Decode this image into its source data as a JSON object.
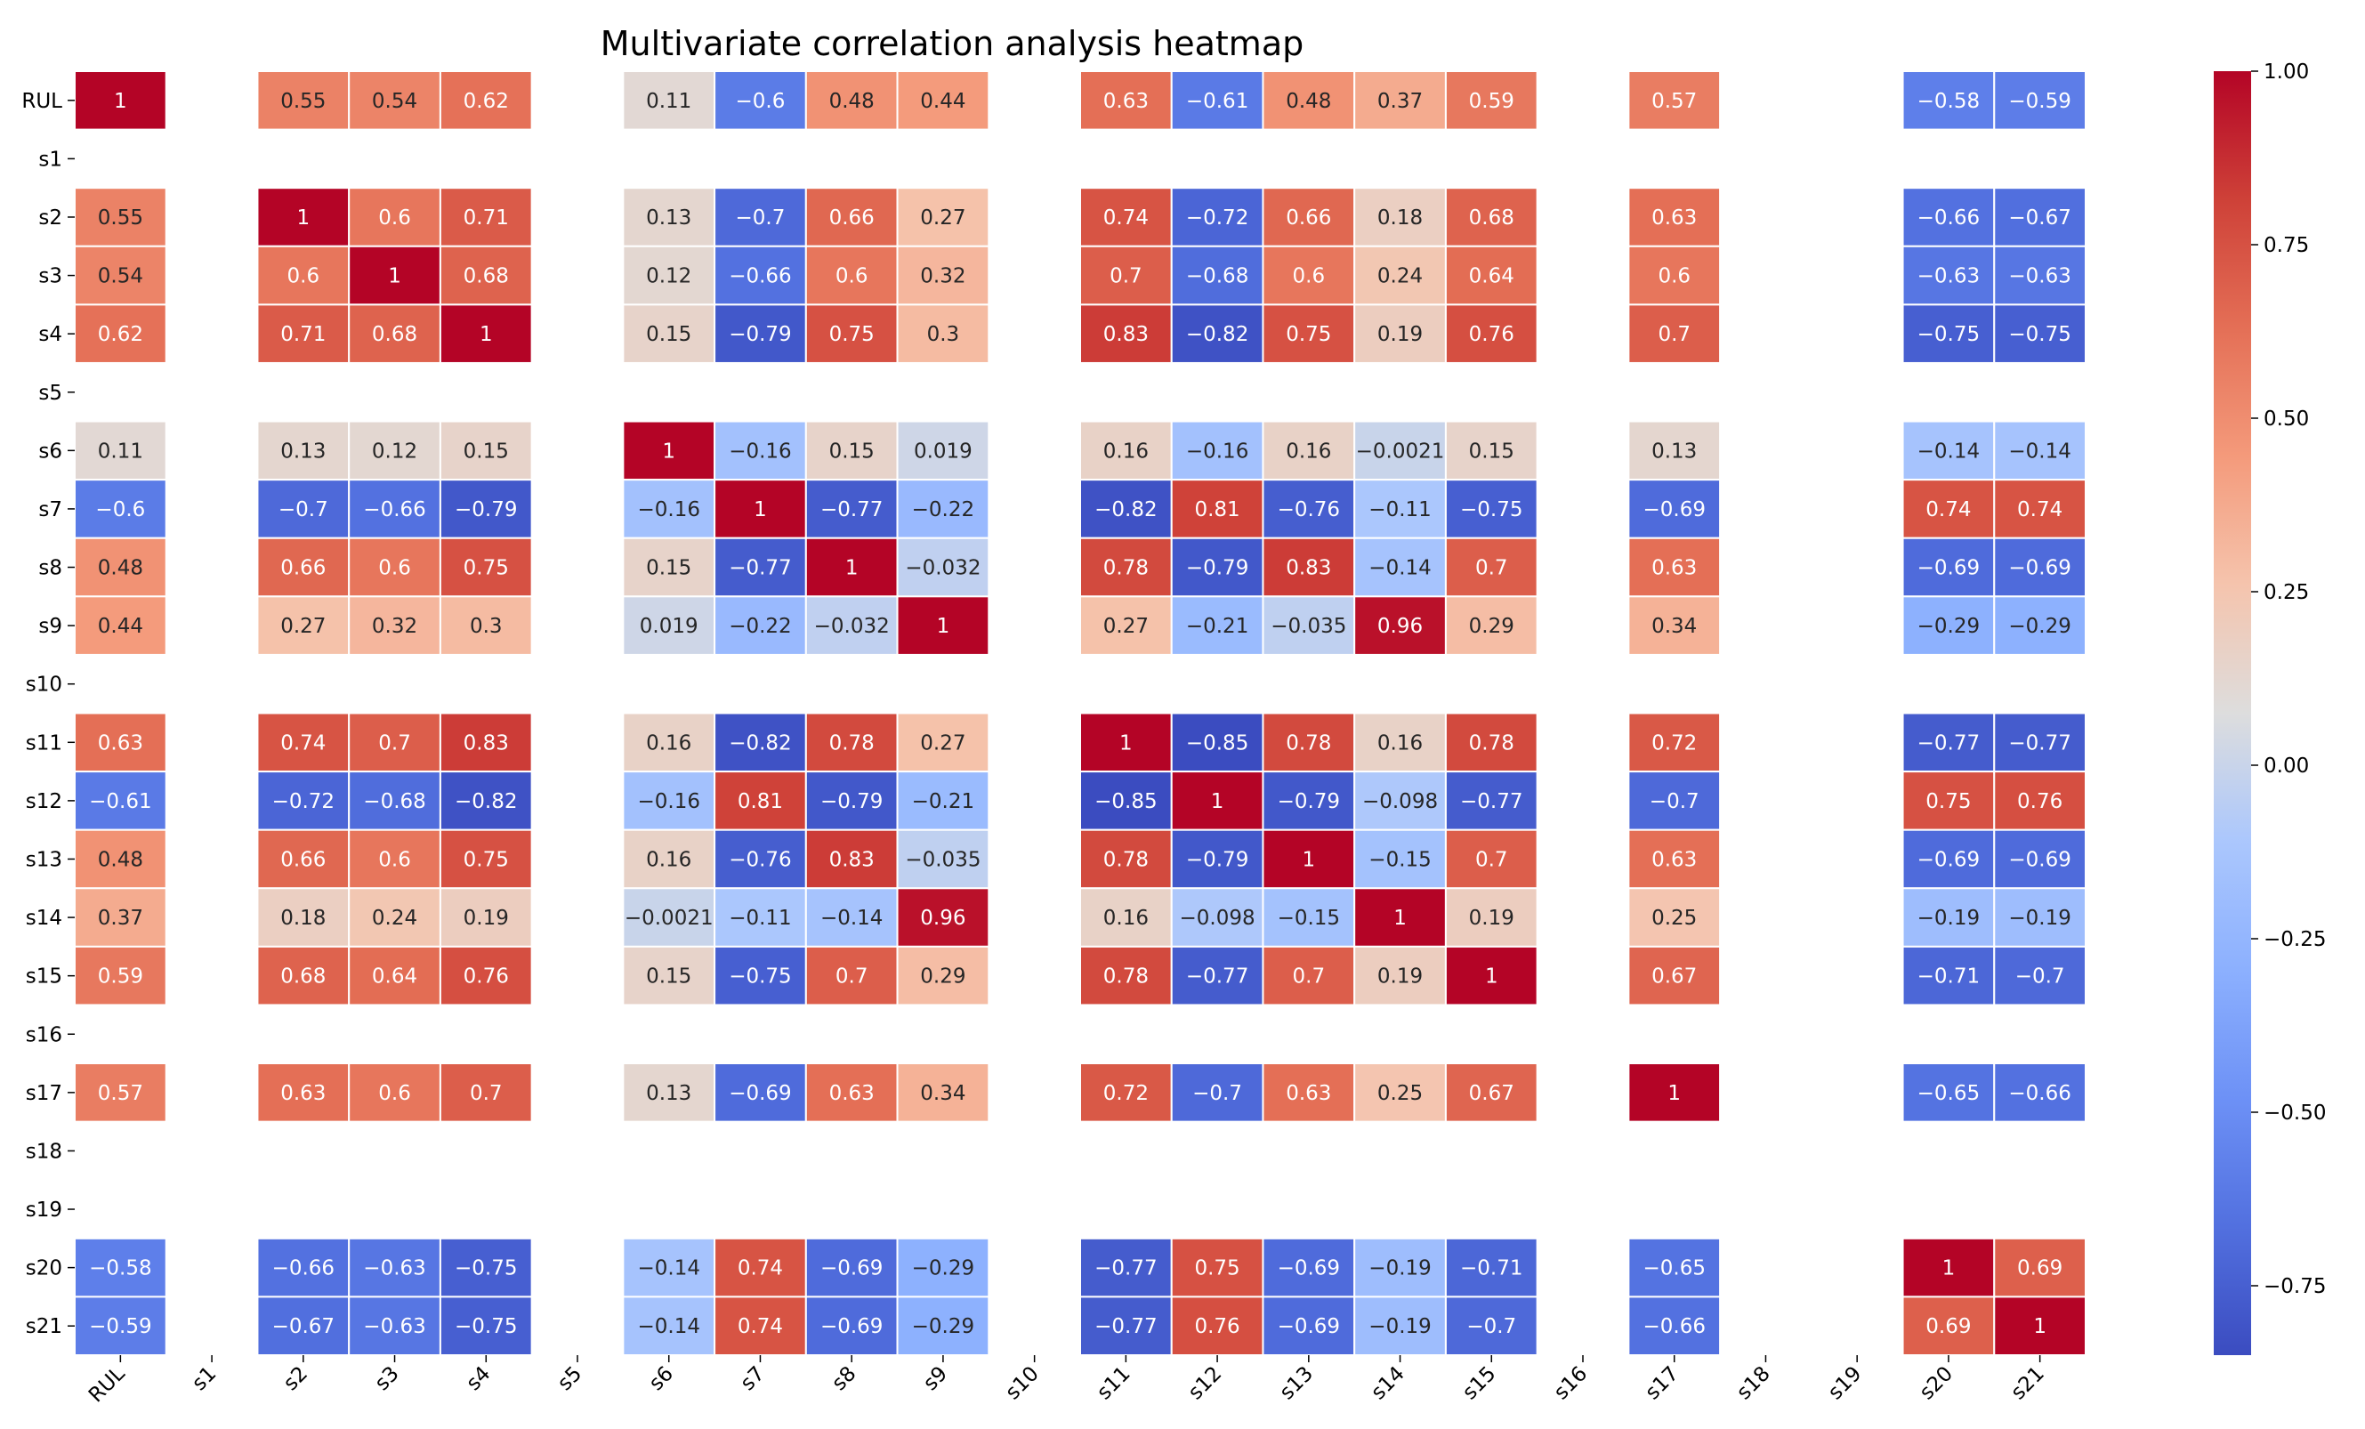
{
  "chart_data": {
    "type": "heatmap",
    "title": "Multivariate correlation analysis heatmap",
    "labels": [
      "RUL",
      "s1",
      "s2",
      "s3",
      "s4",
      "s5",
      "s6",
      "s7",
      "s8",
      "s9",
      "s10",
      "s11",
      "s12",
      "s13",
      "s14",
      "s15",
      "s16",
      "s17",
      "s18",
      "s19",
      "s20",
      "s21"
    ],
    "colormap": "coolwarm",
    "vmin": -0.85,
    "vmax": 1.0,
    "colorbar_ticks": [
      "1.00",
      "0.75",
      "0.50",
      "0.25",
      "0.00",
      "−0.25",
      "−0.50",
      "−0.75"
    ],
    "colorbar_tick_values": [
      1.0,
      0.75,
      0.5,
      0.25,
      0.0,
      -0.25,
      -0.5,
      -0.75
    ],
    "values": [
      [
        1,
        null,
        0.55,
        0.54,
        0.62,
        null,
        0.11,
        -0.6,
        0.48,
        0.44,
        null,
        0.63,
        -0.61,
        0.48,
        0.37,
        0.59,
        null,
        0.57,
        null,
        null,
        -0.58,
        -0.59
      ],
      [
        null,
        null,
        null,
        null,
        null,
        null,
        null,
        null,
        null,
        null,
        null,
        null,
        null,
        null,
        null,
        null,
        null,
        null,
        null,
        null,
        null,
        null
      ],
      [
        0.55,
        null,
        1,
        0.6,
        0.71,
        null,
        0.13,
        -0.7,
        0.66,
        0.27,
        null,
        0.74,
        -0.72,
        0.66,
        0.18,
        0.68,
        null,
        0.63,
        null,
        null,
        -0.66,
        -0.67
      ],
      [
        0.54,
        null,
        0.6,
        1,
        0.68,
        null,
        0.12,
        -0.66,
        0.6,
        0.32,
        null,
        0.7,
        -0.68,
        0.6,
        0.24,
        0.64,
        null,
        0.6,
        null,
        null,
        -0.63,
        -0.63
      ],
      [
        0.62,
        null,
        0.71,
        0.68,
        1,
        null,
        0.15,
        -0.79,
        0.75,
        0.3,
        null,
        0.83,
        -0.82,
        0.75,
        0.19,
        0.76,
        null,
        0.7,
        null,
        null,
        -0.75,
        -0.75
      ],
      [
        null,
        null,
        null,
        null,
        null,
        null,
        null,
        null,
        null,
        null,
        null,
        null,
        null,
        null,
        null,
        null,
        null,
        null,
        null,
        null,
        null,
        null
      ],
      [
        0.11,
        null,
        0.13,
        0.12,
        0.15,
        null,
        1,
        -0.16,
        0.15,
        0.019,
        null,
        0.16,
        -0.16,
        0.16,
        -0.0021,
        0.15,
        null,
        0.13,
        null,
        null,
        -0.14,
        -0.14
      ],
      [
        -0.6,
        null,
        -0.7,
        -0.66,
        -0.79,
        null,
        -0.16,
        1,
        -0.77,
        -0.22,
        null,
        -0.82,
        0.81,
        -0.76,
        -0.11,
        -0.75,
        null,
        -0.69,
        null,
        null,
        0.74,
        0.74
      ],
      [
        0.48,
        null,
        0.66,
        0.6,
        0.75,
        null,
        0.15,
        -0.77,
        1,
        -0.032,
        null,
        0.78,
        -0.79,
        0.83,
        -0.14,
        0.7,
        null,
        0.63,
        null,
        null,
        -0.69,
        -0.69
      ],
      [
        0.44,
        null,
        0.27,
        0.32,
        0.3,
        null,
        0.019,
        -0.22,
        -0.032,
        1,
        null,
        0.27,
        -0.21,
        -0.035,
        0.96,
        0.29,
        null,
        0.34,
        null,
        null,
        -0.29,
        -0.29
      ],
      [
        null,
        null,
        null,
        null,
        null,
        null,
        null,
        null,
        null,
        null,
        null,
        null,
        null,
        null,
        null,
        null,
        null,
        null,
        null,
        null,
        null,
        null
      ],
      [
        0.63,
        null,
        0.74,
        0.7,
        0.83,
        null,
        0.16,
        -0.82,
        0.78,
        0.27,
        null,
        1,
        -0.85,
        0.78,
        0.16,
        0.78,
        null,
        0.72,
        null,
        null,
        -0.77,
        -0.77
      ],
      [
        -0.61,
        null,
        -0.72,
        -0.68,
        -0.82,
        null,
        -0.16,
        0.81,
        -0.79,
        -0.21,
        null,
        -0.85,
        1,
        -0.79,
        -0.098,
        -0.77,
        null,
        -0.7,
        null,
        null,
        0.75,
        0.76
      ],
      [
        0.48,
        null,
        0.66,
        0.6,
        0.75,
        null,
        0.16,
        -0.76,
        0.83,
        -0.035,
        null,
        0.78,
        -0.79,
        1,
        -0.15,
        0.7,
        null,
        0.63,
        null,
        null,
        -0.69,
        -0.69
      ],
      [
        0.37,
        null,
        0.18,
        0.24,
        0.19,
        null,
        -0.0021,
        -0.11,
        -0.14,
        0.96,
        null,
        0.16,
        -0.098,
        -0.15,
        1,
        0.19,
        null,
        0.25,
        null,
        null,
        -0.19,
        -0.19
      ],
      [
        0.59,
        null,
        0.68,
        0.64,
        0.76,
        null,
        0.15,
        -0.75,
        0.7,
        0.29,
        null,
        0.78,
        -0.77,
        0.7,
        0.19,
        1,
        null,
        0.67,
        null,
        null,
        -0.71,
        -0.7
      ],
      [
        null,
        null,
        null,
        null,
        null,
        null,
        null,
        null,
        null,
        null,
        null,
        null,
        null,
        null,
        null,
        null,
        null,
        null,
        null,
        null,
        null,
        null
      ],
      [
        0.57,
        null,
        0.63,
        0.6,
        0.7,
        null,
        0.13,
        -0.69,
        0.63,
        0.34,
        null,
        0.72,
        -0.7,
        0.63,
        0.25,
        0.67,
        null,
        1,
        null,
        null,
        -0.65,
        -0.66
      ],
      [
        null,
        null,
        null,
        null,
        null,
        null,
        null,
        null,
        null,
        null,
        null,
        null,
        null,
        null,
        null,
        null,
        null,
        null,
        null,
        null,
        null,
        null
      ],
      [
        null,
        null,
        null,
        null,
        null,
        null,
        null,
        null,
        null,
        null,
        null,
        null,
        null,
        null,
        null,
        null,
        null,
        null,
        null,
        null,
        null,
        null
      ],
      [
        -0.58,
        null,
        -0.66,
        -0.63,
        -0.75,
        null,
        -0.14,
        0.74,
        -0.69,
        -0.29,
        null,
        -0.77,
        0.75,
        -0.69,
        -0.19,
        -0.71,
        null,
        -0.65,
        null,
        null,
        1,
        0.69
      ],
      [
        -0.59,
        null,
        -0.67,
        -0.63,
        -0.75,
        null,
        -0.14,
        0.74,
        -0.69,
        -0.29,
        null,
        -0.77,
        0.76,
        -0.69,
        -0.19,
        -0.7,
        null,
        -0.66,
        null,
        null,
        0.69,
        1
      ]
    ]
  }
}
